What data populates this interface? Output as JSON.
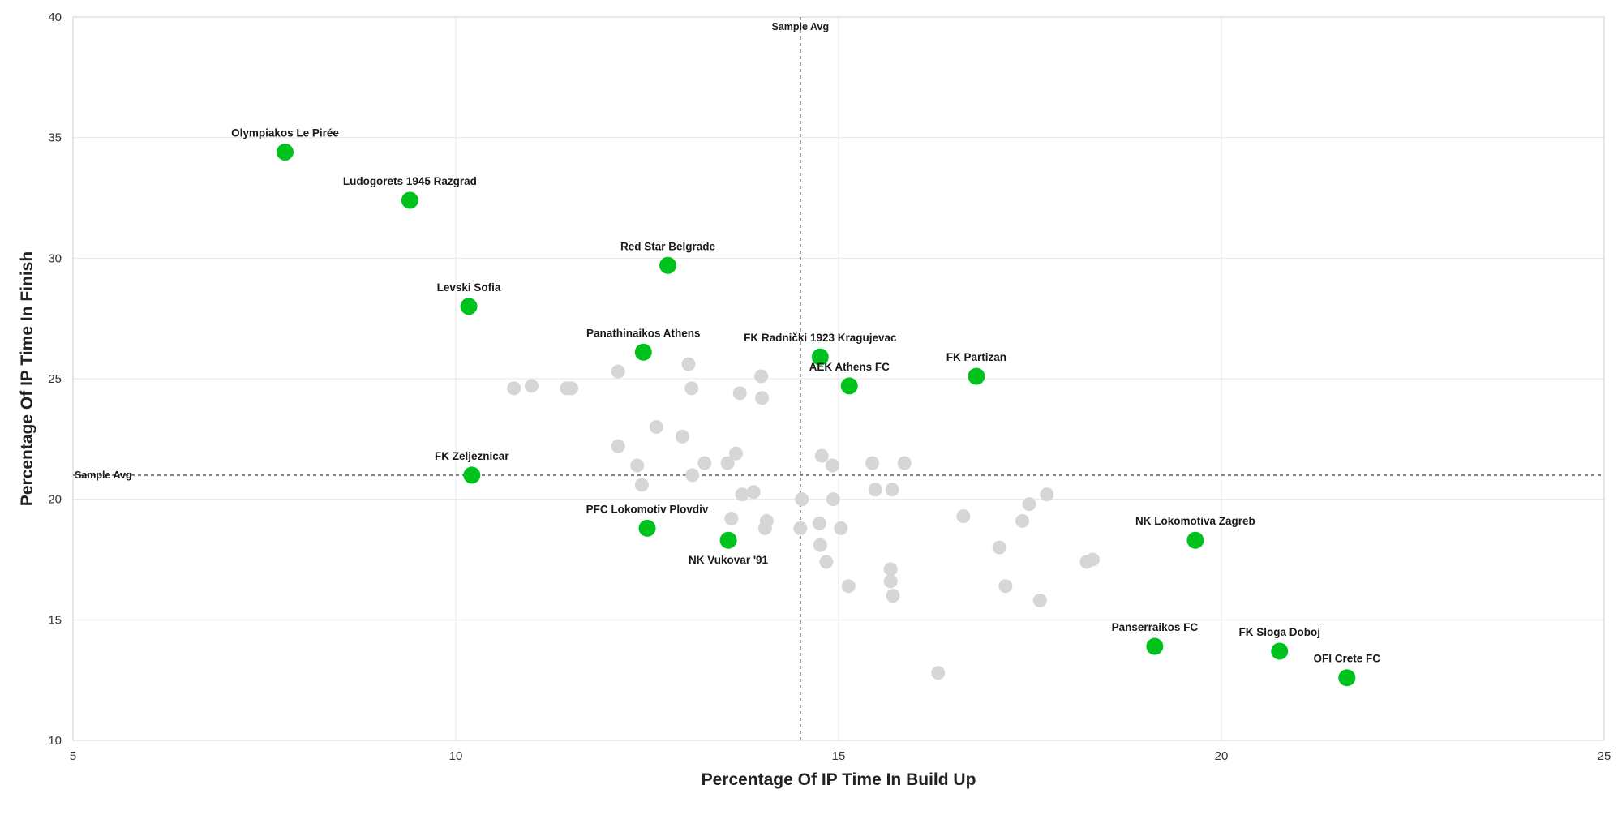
{
  "chart_data": {
    "type": "scatter",
    "xlabel": "Percentage Of IP Time In Build Up",
    "ylabel": "Percentage Of IP Time In Finish",
    "xlim": [
      5,
      25
    ],
    "ylim": [
      10,
      40
    ],
    "xticks": [
      5,
      10,
      15,
      20,
      25
    ],
    "yticks": [
      10,
      15,
      20,
      25,
      30,
      35,
      40
    ],
    "grid": true,
    "colors": {
      "highlight": "#00c21c",
      "background": "#d6d6d6"
    },
    "sample_avg": {
      "x": 14.5,
      "y": 21.0,
      "label": "Sample Avg"
    },
    "highlighted": [
      {
        "name": "Olympiakos Le Pirée",
        "x": 7.77,
        "y": 34.4,
        "label_pos": "above"
      },
      {
        "name": "Ludogorets 1945 Razgrad",
        "x": 9.4,
        "y": 32.4,
        "label_pos": "above"
      },
      {
        "name": "Red Star Belgrade",
        "x": 12.77,
        "y": 29.7,
        "label_pos": "above"
      },
      {
        "name": "Levski Sofia",
        "x": 10.17,
        "y": 28.0,
        "label_pos": "above"
      },
      {
        "name": "Panathinaikos Athens",
        "x": 12.45,
        "y": 26.1,
        "label_pos": "above"
      },
      {
        "name": "FK Radnički 1923 Kragujevac",
        "x": 14.76,
        "y": 25.9,
        "label_pos": "above"
      },
      {
        "name": "AEK Athens FC",
        "x": 15.14,
        "y": 24.7,
        "label_pos": "above"
      },
      {
        "name": "FK Partizan",
        "x": 16.8,
        "y": 25.1,
        "label_pos": "above"
      },
      {
        "name": "FK Zeljeznicar",
        "x": 10.21,
        "y": 21.0,
        "label_pos": "above"
      },
      {
        "name": "PFC Lokomotiv Plovdiv",
        "x": 12.5,
        "y": 18.8,
        "label_pos": "above"
      },
      {
        "name": "NK Vukovar '91",
        "x": 13.56,
        "y": 18.3,
        "label_pos": "below"
      },
      {
        "name": "NK Lokomotiva Zagreb",
        "x": 19.66,
        "y": 18.3,
        "label_pos": "above"
      },
      {
        "name": "Panserraikos FC",
        "x": 19.13,
        "y": 13.9,
        "label_pos": "above"
      },
      {
        "name": "FK Sloga Doboj",
        "x": 20.76,
        "y": 13.7,
        "label_pos": "above"
      },
      {
        "name": "OFI Crete FC",
        "x": 21.64,
        "y": 12.6,
        "label_pos": "above"
      }
    ],
    "others": [
      [
        10.76,
        24.6
      ],
      [
        10.99,
        24.7
      ],
      [
        11.45,
        24.6
      ],
      [
        11.51,
        24.6
      ],
      [
        12.12,
        25.3
      ],
      [
        13.04,
        25.6
      ],
      [
        13.08,
        24.6
      ],
      [
        13.71,
        24.4
      ],
      [
        13.99,
        25.1
      ],
      [
        14.0,
        24.2
      ],
      [
        12.62,
        23.0
      ],
      [
        12.96,
        22.6
      ],
      [
        12.12,
        22.2
      ],
      [
        12.37,
        21.4
      ],
      [
        13.25,
        21.5
      ],
      [
        13.55,
        21.5
      ],
      [
        13.66,
        21.9
      ],
      [
        13.09,
        21.0
      ],
      [
        12.43,
        20.6
      ],
      [
        13.89,
        20.3
      ],
      [
        13.74,
        20.2
      ],
      [
        13.6,
        19.2
      ],
      [
        14.06,
        19.1
      ],
      [
        14.04,
        18.8
      ],
      [
        14.52,
        20.0
      ],
      [
        14.78,
        21.8
      ],
      [
        14.92,
        21.4
      ],
      [
        14.93,
        20.0
      ],
      [
        14.75,
        19.0
      ],
      [
        14.5,
        18.8
      ],
      [
        15.03,
        18.8
      ],
      [
        14.76,
        18.1
      ],
      [
        14.84,
        17.4
      ],
      [
        15.13,
        16.4
      ],
      [
        15.44,
        21.5
      ],
      [
        15.48,
        20.4
      ],
      [
        15.7,
        20.4
      ],
      [
        15.86,
        21.5
      ],
      [
        15.68,
        17.1
      ],
      [
        15.68,
        16.6
      ],
      [
        15.71,
        16.0
      ],
      [
        16.3,
        12.8
      ],
      [
        16.63,
        19.3
      ],
      [
        17.1,
        18.0
      ],
      [
        17.18,
        16.4
      ],
      [
        17.4,
        19.1
      ],
      [
        17.49,
        19.8
      ],
      [
        17.63,
        15.8
      ],
      [
        17.72,
        20.2
      ],
      [
        18.24,
        17.4
      ],
      [
        18.32,
        17.5
      ]
    ]
  }
}
